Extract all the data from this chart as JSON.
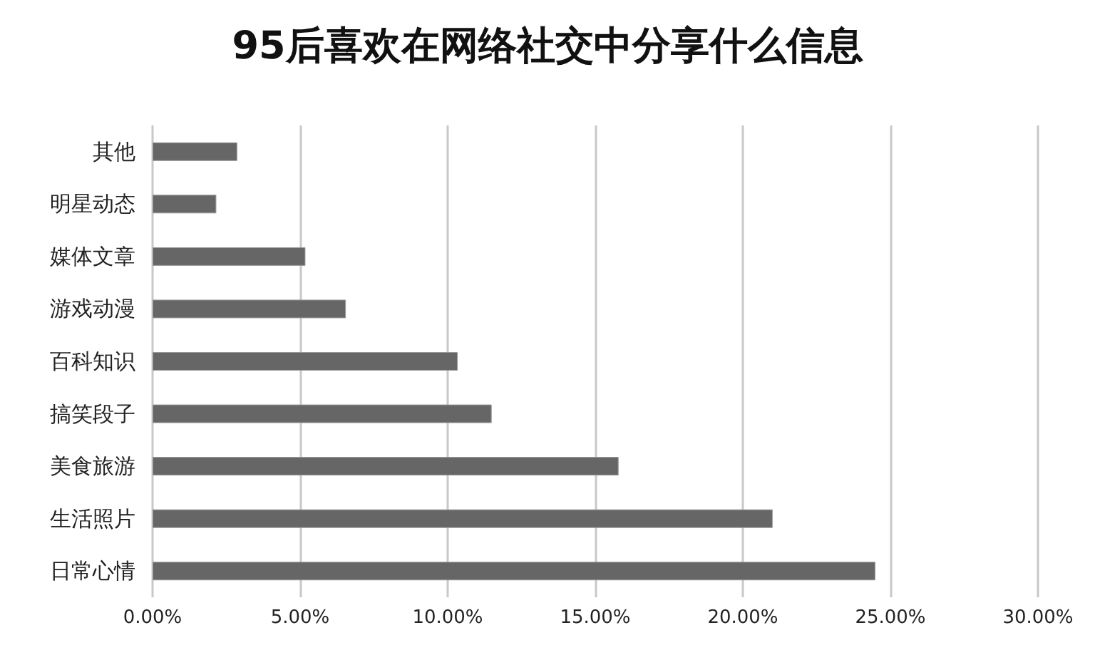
{
  "chart_data": {
    "type": "bar",
    "title": "95后喜欢在网络社交中分享什么信息",
    "orientation": "horizontal",
    "categories": [
      "其他",
      "明星动态",
      "媒体文章",
      "游戏动漫",
      "百科知识",
      "搞笑段子",
      "美食旅游",
      "生活照片",
      "日常心情"
    ],
    "values": [
      2.87,
      2.16,
      5.18,
      6.55,
      10.34,
      11.49,
      15.79,
      21.01,
      24.49
    ],
    "color": "#666666",
    "xlim": [
      0,
      30
    ],
    "xticks": [
      {
        "value": 0,
        "label": "0.00%"
      },
      {
        "value": 5,
        "label": "5.00%"
      },
      {
        "value": 10,
        "label": "10.00%"
      },
      {
        "value": 15,
        "label": "15.00%"
      },
      {
        "value": 20,
        "label": "20.00%"
      },
      {
        "value": 25,
        "label": "25.00%"
      },
      {
        "value": 30,
        "label": "30.00%"
      }
    ],
    "grid": "x"
  }
}
